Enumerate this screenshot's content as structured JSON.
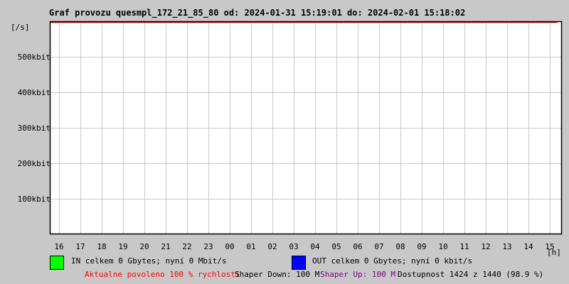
{
  "chart_data": {
    "type": "line",
    "title": "Graf provozu quesmpl_172_21_85_80 od: 2024-01-31 15:19:01 do: 2024-02-01 15:18:02",
    "ylabel": "[/s]",
    "xlabel": "[h]",
    "x_ticks": [
      "16",
      "17",
      "18",
      "19",
      "20",
      "21",
      "22",
      "23",
      "00",
      "01",
      "02",
      "03",
      "04",
      "05",
      "06",
      "07",
      "08",
      "09",
      "10",
      "11",
      "12",
      "13",
      "14",
      "15"
    ],
    "y_ticks": [
      {
        "value": 100,
        "label": "100kbit"
      },
      {
        "value": 200,
        "label": "200kbit"
      },
      {
        "value": 300,
        "label": "300kbit"
      },
      {
        "value": 400,
        "label": "400kbit"
      },
      {
        "value": 500,
        "label": "500kbit"
      }
    ],
    "ylim": [
      0,
      600
    ],
    "grid": true,
    "series": [
      {
        "name": "IN",
        "color": "#00ff00",
        "values": []
      },
      {
        "name": "OUT",
        "color": "#0000ff",
        "values": []
      }
    ],
    "limit_line_color": "#e00000"
  },
  "legend": {
    "in_text": "IN celkem 0 Gbytes; nyní 0 Mbit/s",
    "out_text": "OUT celkem 0 Gbytes; nyní 0 kbit/s",
    "in_color": "#00ff00",
    "out_color": "#0000ff"
  },
  "status": {
    "allowed": "Aktualne povoleno 100 % rychlosti",
    "shaper_down": "Shaper Down: 100 M",
    "shaper_up": "Shaper Up: 100 M",
    "availability": "Dostupnost 1424 z 1440 (98.9 %)",
    "allowed_color": "#ff0000",
    "shaper_up_color": "#800080"
  }
}
